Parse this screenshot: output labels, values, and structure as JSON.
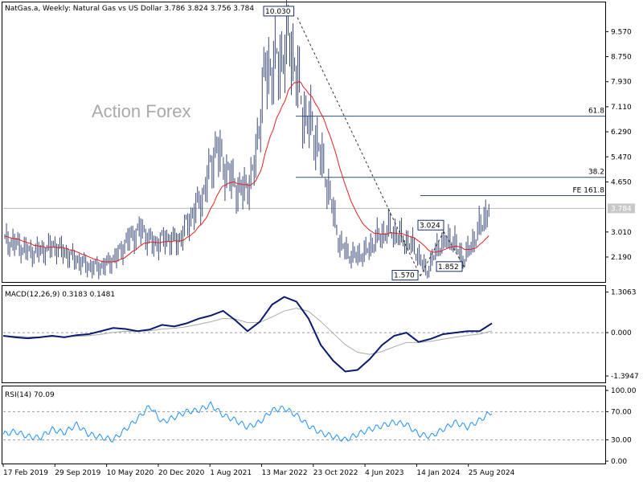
{
  "header": {
    "symbol_line": "NatGas.a, Weekly:  Natural Gas vs US Dollar  3.786 3.824 3.756 3.784",
    "macd_line": "MACD(12,26,9) 0.3183 0.1481",
    "rsi_line": "RSI(14) 70.09"
  },
  "watermark": "Action Forex",
  "chart_data": [
    {
      "type": "ohlc",
      "series_name": "NatGas.a Weekly",
      "y_ticks": [
        "9.570",
        "8.750",
        "7.930",
        "7.110",
        "6.290",
        "5.470",
        "4.650",
        "3.010",
        "2.190"
      ],
      "ylim": [
        1.4,
        10.5
      ],
      "last_price": "3.784",
      "ma_line_color": "#e02020",
      "bar_color": "#3a4a7a",
      "labels": [
        {
          "text": "10.030",
          "x": "13 Mar 2022",
          "y": 10.03
        },
        {
          "text": "3.024",
          "x": "14 Jan 2024",
          "y": 3.024
        },
        {
          "text": "1.852",
          "x": "25 Aug 2024",
          "y": 1.852
        },
        {
          "text": "1.570",
          "x": "14 Jan 2024",
          "y": 1.57
        }
      ],
      "levels": [
        {
          "text": "61.8",
          "y": 6.8
        },
        {
          "text": "38.2",
          "y": 4.8
        },
        {
          "text": "FE 161.8",
          "y": 4.2
        }
      ],
      "ohlc": [
        {
          "x": "17 Feb 2019",
          "c": 2.75
        },
        {
          "x": "Apr 2019",
          "c": 2.6
        },
        {
          "x": "Jun 2019",
          "c": 2.35
        },
        {
          "x": "Aug 2019",
          "c": 2.4
        },
        {
          "x": "29 Sep 2019",
          "c": 2.55
        },
        {
          "x": "Nov 2019",
          "c": 2.3
        },
        {
          "x": "Jan 2020",
          "c": 2.05
        },
        {
          "x": "Mar 2020",
          "c": 1.85
        },
        {
          "x": "10 May 2020",
          "c": 1.9
        },
        {
          "x": "Jul 2020",
          "c": 2.2
        },
        {
          "x": "Sep 2020",
          "c": 2.8
        },
        {
          "x": "Oct 2020",
          "c": 3.1
        },
        {
          "x": "20 Dec 2020",
          "c": 2.6
        },
        {
          "x": "Feb 2021",
          "c": 2.8
        },
        {
          "x": "Apr 2021",
          "c": 2.7
        },
        {
          "x": "Jun 2021",
          "c": 3.5
        },
        {
          "x": "1 Aug 2021",
          "c": 4.2
        },
        {
          "x": "Oct 2021",
          "c": 5.8
        },
        {
          "x": "Nov 2021",
          "c": 4.9
        },
        {
          "x": "Jan 2022",
          "c": 4.3
        },
        {
          "x": "13 Mar 2022",
          "c": 4.8
        },
        {
          "x": "May 2022",
          "c": 8.3
        },
        {
          "x": "Jul 2022",
          "c": 8.5
        },
        {
          "x": "Aug 2022",
          "c": 9.3
        },
        {
          "x": "Sep 2022",
          "c": 7.0
        },
        {
          "x": "23 Oct 2022",
          "c": 6.2
        },
        {
          "x": "Dec 2022",
          "c": 4.6
        },
        {
          "x": "Feb 2023",
          "c": 2.6
        },
        {
          "x": "Apr 2023",
          "c": 2.2
        },
        {
          "x": "4 Jun 2023",
          "c": 2.3
        },
        {
          "x": "Aug 2023",
          "c": 2.8
        },
        {
          "x": "Oct 2023",
          "c": 3.1
        },
        {
          "x": "Nov 2023",
          "c": 2.8
        },
        {
          "x": "14 Jan 2024",
          "c": 2.5
        },
        {
          "x": "Mar 2024",
          "c": 1.7
        },
        {
          "x": "May 2024",
          "c": 2.6
        },
        {
          "x": "Jun 2024",
          "c": 2.8
        },
        {
          "x": "25 Aug 2024",
          "c": 2.1
        },
        {
          "x": "Oct 2024",
          "c": 2.9
        },
        {
          "x": "Nov 2024",
          "c": 3.78
        }
      ]
    },
    {
      "type": "line",
      "series_name": "MACD",
      "y_ticks": [
        "1.3063",
        "0.000",
        "-1.3947"
      ],
      "ylim": [
        -1.6,
        1.45
      ],
      "values": [
        -0.1,
        -0.15,
        -0.18,
        -0.15,
        -0.1,
        -0.15,
        -0.08,
        -0.05,
        0.05,
        0.15,
        0.12,
        0.05,
        0.1,
        0.25,
        0.2,
        0.3,
        0.45,
        0.55,
        0.7,
        0.4,
        0.05,
        0.35,
        0.9,
        1.15,
        1.0,
        0.45,
        -0.4,
        -0.9,
        -1.25,
        -1.2,
        -0.85,
        -0.4,
        -0.1,
        0.0,
        -0.3,
        -0.2,
        -0.05,
        0.0,
        0.05,
        0.05,
        0.3
      ]
    },
    {
      "type": "line",
      "series_name": "RSI(14)",
      "y_ticks": [
        "100.00",
        "70.00",
        "30.00",
        "0.00"
      ],
      "ylim": [
        0,
        100
      ],
      "values": [
        38,
        42,
        35,
        33,
        45,
        40,
        52,
        38,
        34,
        30,
        45,
        60,
        78,
        55,
        62,
        70,
        72,
        80,
        65,
        58,
        48,
        55,
        72,
        75,
        65,
        50,
        40,
        35,
        30,
        38,
        45,
        50,
        55,
        52,
        38,
        35,
        45,
        55,
        48,
        58,
        70
      ]
    }
  ],
  "x_axis": {
    "ticks": [
      "17 Feb 2019",
      "29 Sep 2019",
      "10 May 2020",
      "20 Dec 2020",
      "1 Aug 2021",
      "13 Mar 2022",
      "23 Oct 2022",
      "4 Jun 2023",
      "14 Jan 2024",
      "25 Aug 2024"
    ]
  }
}
